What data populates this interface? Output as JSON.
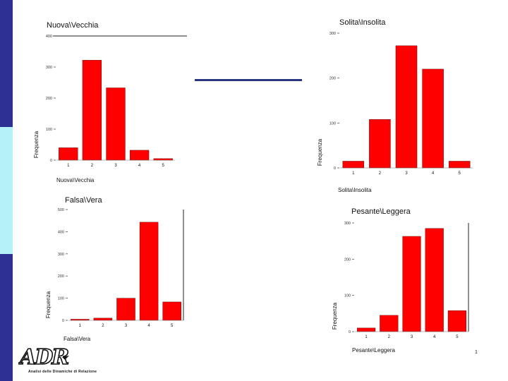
{
  "colors": {
    "bar": "#ff0000",
    "bar_stroke": "#5a0000",
    "strip_dark": "#2e3192",
    "strip_light": "#b3f2f7"
  },
  "logo": {
    "text": "ADR",
    "subtitle": "Analisi delle Dinamiche di Relazione"
  },
  "page_number": "1",
  "chart_data": [
    {
      "type": "bar",
      "title": "Nuova\\Vecchia",
      "xlabel": "Nuova\\Vecchia",
      "ylabel": "Frequenza",
      "categories": [
        "1",
        "2",
        "3",
        "4",
        "5"
      ],
      "values": [
        40,
        322,
        233,
        32,
        5
      ],
      "ylim": [
        0,
        400
      ],
      "yticks": [
        0,
        100,
        200,
        300,
        400
      ],
      "ytick_labels": [
        "0",
        "100",
        "200",
        "300",
        "400"
      ]
    },
    {
      "type": "bar",
      "title": "Solita\\Insolita",
      "xlabel": "Solita\\Insolita",
      "ylabel": "Frequenza",
      "categories": [
        "1",
        "2",
        "3",
        "4",
        "5"
      ],
      "values": [
        15,
        108,
        272,
        220,
        15
      ],
      "ylim": [
        0,
        300
      ],
      "yticks": [
        0,
        100,
        200,
        300
      ],
      "ytick_labels": [
        "0",
        "100",
        "200",
        "300"
      ]
    },
    {
      "type": "bar",
      "title": "Falsa\\Vera",
      "xlabel": "Falsa\\Vera",
      "ylabel": "Frequenza",
      "categories": [
        "1",
        "2",
        "3",
        "4",
        "5"
      ],
      "values": [
        5,
        10,
        100,
        443,
        83
      ],
      "ylim": [
        0,
        500
      ],
      "yticks": [
        0,
        100,
        200,
        300,
        400,
        500
      ],
      "ytick_labels": [
        "0",
        "100",
        "200",
        "300",
        "400",
        "500"
      ]
    },
    {
      "type": "bar",
      "title": "Pesante\\Leggera",
      "xlabel": "Pesante\\Leggera",
      "ylabel": "Frequenza",
      "categories": [
        "1",
        "2",
        "3",
        "4",
        "5"
      ],
      "values": [
        10,
        45,
        263,
        285,
        58
      ],
      "ylim": [
        0,
        300
      ],
      "yticks": [
        0,
        100,
        200,
        300
      ],
      "ytick_labels": [
        "0",
        "100",
        "200",
        "300"
      ]
    }
  ]
}
